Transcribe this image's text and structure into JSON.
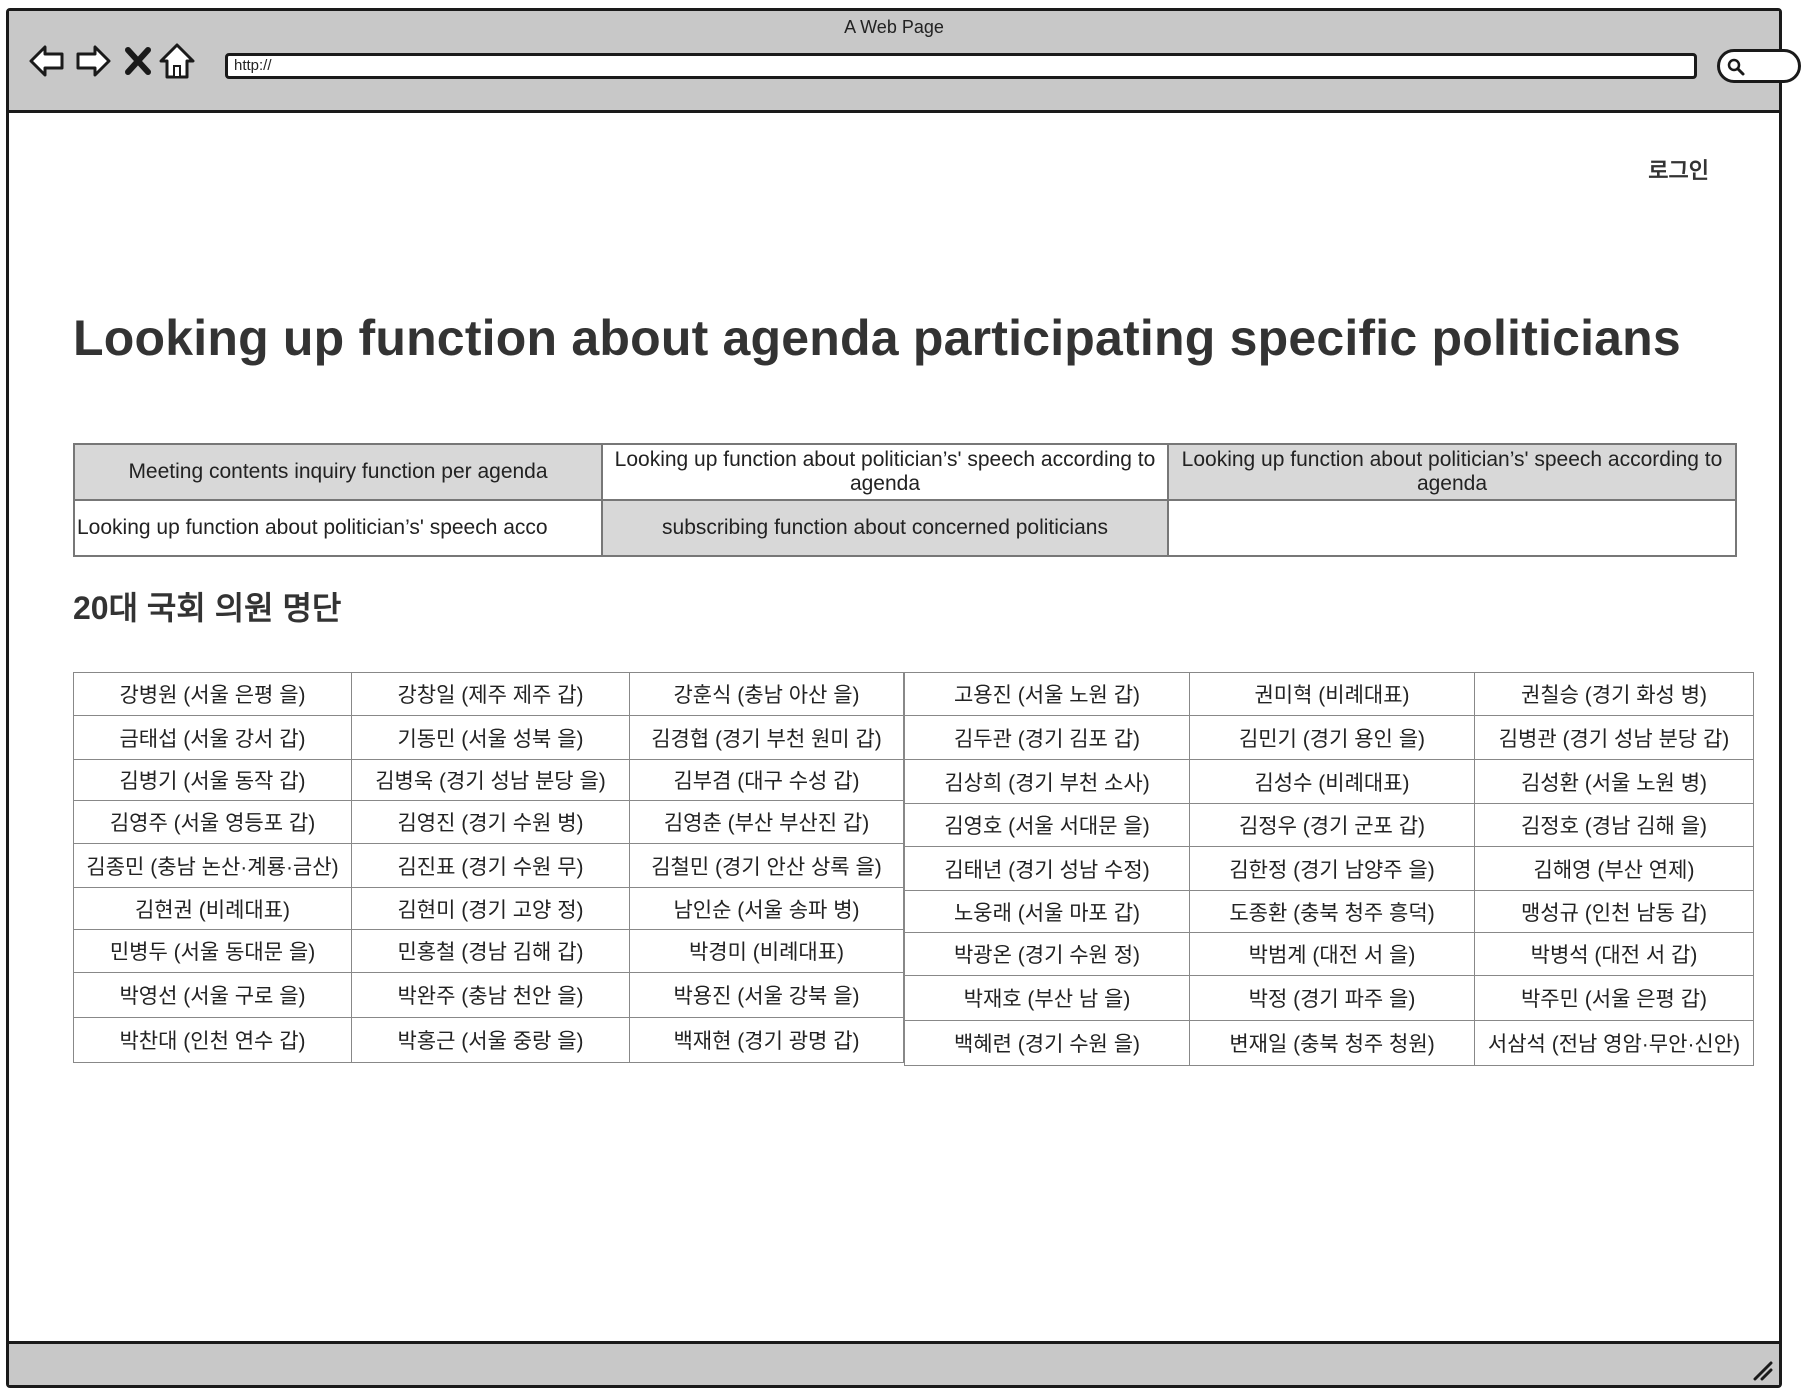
{
  "window": {
    "title": "A Web Page"
  },
  "address_bar": {
    "url": "http://"
  },
  "header": {
    "login_label": "로그인"
  },
  "main": {
    "title": "Looking up function about agenda participating specific politicians",
    "function_table": [
      [
        "Meeting contents inquiry function per agenda",
        "Looking up  function about politician’s' speech according to agenda",
        "Looking up  function about politician’s' speech according to agenda"
      ],
      [
        "Looking up  function about politician’s' speech acco",
        "subscribing function about concerned politicians",
        ""
      ]
    ],
    "roster_title": "20대 국회 의원 명단",
    "roster_left": [
      [
        "강병원 (서울 은평 을)",
        "강창일 (제주 제주 갑)",
        "강훈식 (충남 아산 을)"
      ],
      [
        "금태섭 (서울 강서 갑)",
        "기동민 (서울 성북 을)",
        "김경협 (경기 부천 원미 갑)"
      ],
      [
        "김병기 (서울 동작 갑)",
        "김병욱 (경기 성남 분당 을)",
        "김부겸 (대구 수성 갑)"
      ],
      [
        "김영주 (서울 영등포 갑)",
        "김영진 (경기 수원 병)",
        "김영춘 (부산 부산진 갑)"
      ],
      [
        "김종민 (충남 논산·계룡·금산)",
        "김진표 (경기 수원 무)",
        "김철민 (경기 안산 상록 을)"
      ],
      [
        "김현권 (비례대표)",
        "김현미 (경기 고양 정)",
        "남인순 (서울 송파 병)"
      ],
      [
        "민병두 (서울 동대문 을)",
        "민홍철 (경남 김해 갑)",
        "박경미 (비례대표)"
      ],
      [
        "박영선 (서울 구로 을)",
        "박완주 (충남 천안 을)",
        "박용진 (서울 강북 을)"
      ],
      [
        "박찬대 (인천 연수 갑)",
        "박홍근 (서울 중랑 을)",
        "백재현 (경기 광명 갑)"
      ]
    ],
    "roster_right": [
      [
        "고용진 (서울 노원 갑)",
        "권미혁 (비례대표)",
        "권칠승 (경기 화성 병)"
      ],
      [
        "김두관 (경기 김포 갑)",
        "김민기 (경기 용인 을)",
        "김병관 (경기 성남 분당 갑)"
      ],
      [
        "김상희 (경기 부천 소사)",
        "김성수 (비례대표)",
        "김성환 (서울 노원 병)"
      ],
      [
        "김영호 (서울 서대문 을)",
        "김정우 (경기 군포 갑)",
        "김정호 (경남 김해 을)"
      ],
      [
        "김태년 (경기 성남 수정)",
        "김한정 (경기 남양주 을)",
        "김해영 (부산 연제)"
      ],
      [
        "노웅래 (서울 마포 갑)",
        "도종환 (충북 청주 흥덕)",
        "맹성규 (인천 남동 갑)"
      ],
      [
        "박광온 (경기 수원 정)",
        "박범계 (대전 서 을)",
        "박병석 (대전 서 갑)"
      ],
      [
        "박재호 (부산 남 을)",
        "박정 (경기 파주 을)",
        "박주민 (서울 은평 갑)"
      ],
      [
        "백혜련 (경기 수원 을)",
        "변재일 (충북 청주 청원)",
        "서삼석 (전남 영암·무안·신안)"
      ]
    ]
  },
  "icons": [
    "back-arrow-icon",
    "forward-arrow-icon",
    "close-x-icon",
    "home-icon",
    "search-icon",
    "resize-grip-icon"
  ]
}
